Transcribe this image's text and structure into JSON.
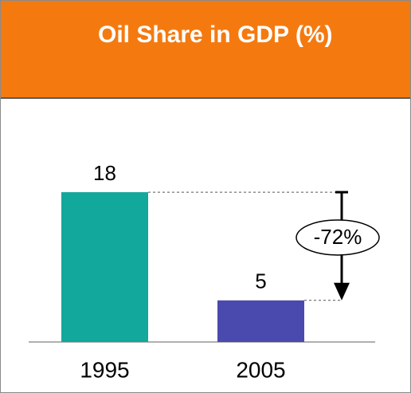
{
  "chart_data": {
    "type": "bar",
    "title": "Oil Share in GDP (%)",
    "categories": [
      "1995",
      "2005"
    ],
    "values": [
      18,
      5
    ],
    "colors": [
      "#12a89c",
      "#4a4aae"
    ],
    "annotations": [
      {
        "text": "-72%"
      }
    ]
  }
}
